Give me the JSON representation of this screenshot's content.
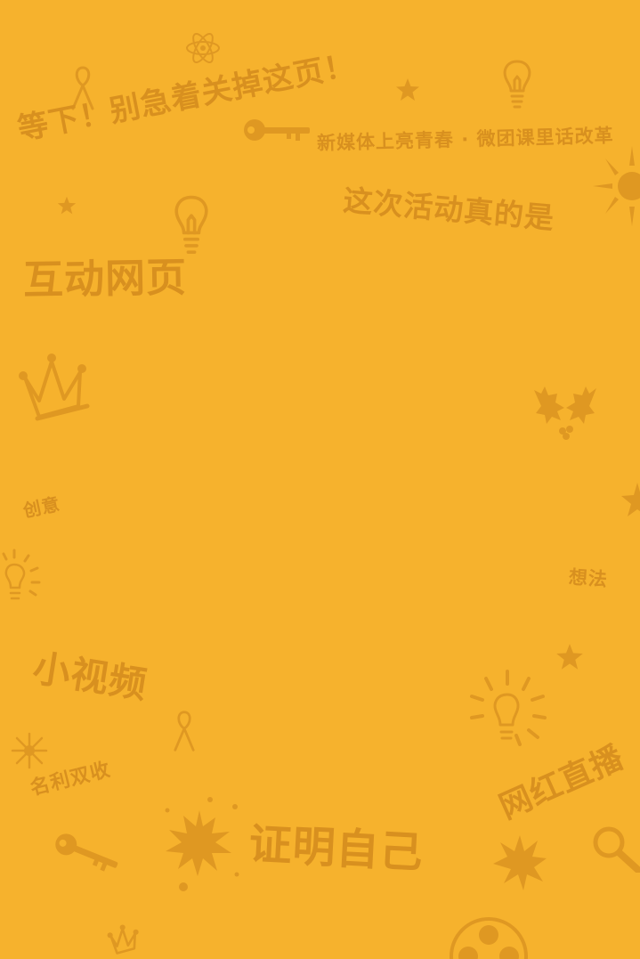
{
  "texts": {
    "wait_headline": "等下！别急着关掉这页！",
    "campaign_title": "新媒体上亮青春 · 微团课里话改革",
    "this_event_is": "这次活动真的是",
    "interactive_page": "互动网页",
    "creativity": "创意",
    "ideas": "想法",
    "short_video": "小视频",
    "fame_and_fortune": "名利双收",
    "influencer_livestream": "网红直播",
    "prove_yourself": "证明自己"
  },
  "colors": {
    "background": "#F6B22D",
    "text_and_icons": "#D8901F"
  },
  "icons": [
    "ribbon-icon",
    "atom-icon",
    "star-icon",
    "lightbulb-icon",
    "key-icon",
    "sun-icon",
    "crown-icon",
    "holly-icon",
    "fireworks-icon",
    "ink-splat-icon",
    "magnifier-icon",
    "burst-icon",
    "film-reel-icon"
  ]
}
